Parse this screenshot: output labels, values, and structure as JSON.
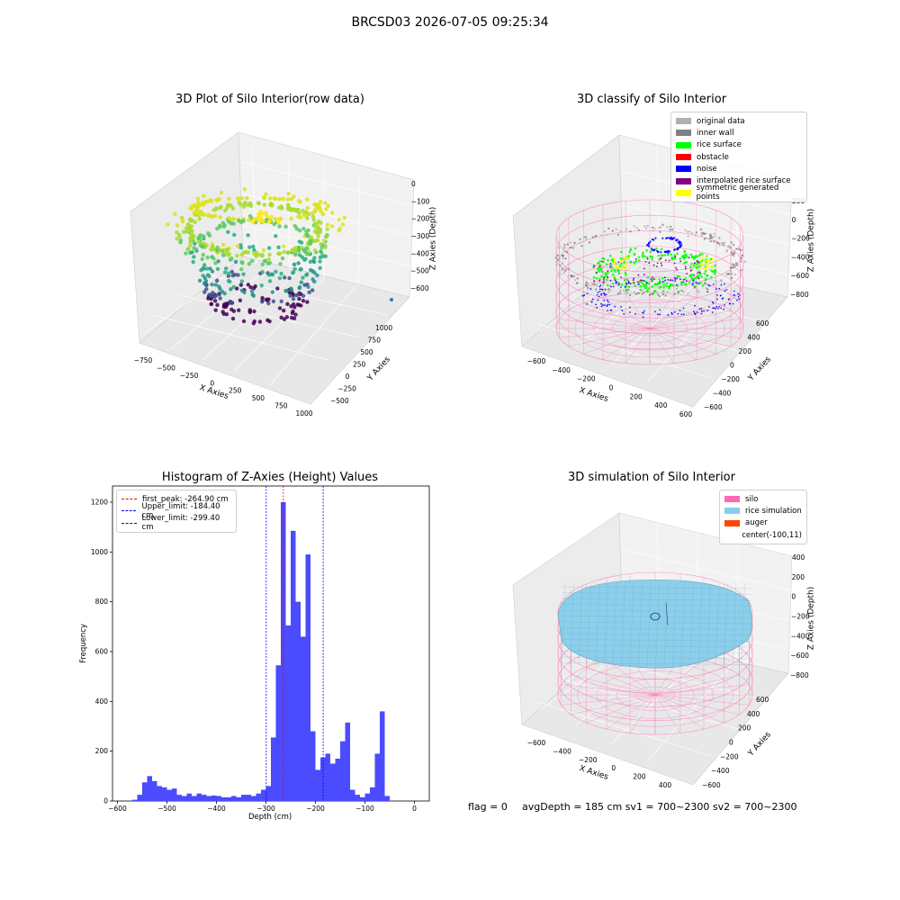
{
  "figure_title": "BRCSD03 2026-07-05 09:25:34",
  "panels": {
    "raw": {
      "title": "3D Plot of Silo Interior(row data)",
      "x_label": "X Axies",
      "y_label": "Y Axies",
      "z_label": "Z Axies (Depth)",
      "x_ticks": [
        "−750",
        "−500",
        "−250",
        "0",
        "250",
        "500",
        "750",
        "1000"
      ],
      "y_ticks": [
        "1000",
        "750",
        "500",
        "250",
        "0",
        "−250",
        "−500"
      ],
      "z_ticks": [
        "0",
        "−100",
        "−200",
        "−300",
        "−400",
        "−500",
        "−600"
      ]
    },
    "classify": {
      "title": "3D classify of Silo Interior",
      "x_label": "X Axies",
      "y_label": "Y Axies",
      "z_label": "Z Axies (Depth)",
      "x_ticks": [
        "−600",
        "−400",
        "−200",
        "0",
        "200",
        "400",
        "600"
      ],
      "y_ticks": [
        "600",
        "400",
        "200",
        "0",
        "−200",
        "−400",
        "−600"
      ],
      "z_ticks": [
        "200",
        "0",
        "−200",
        "−400",
        "−600",
        "−800"
      ],
      "legend": [
        {
          "label": "original data",
          "color": "#b0b0b0"
        },
        {
          "label": "inner wall",
          "color": "#808080"
        },
        {
          "label": "rice surface",
          "color": "#00ff00"
        },
        {
          "label": "obstacle",
          "color": "#ff0000"
        },
        {
          "label": "noise",
          "color": "#0000ff"
        },
        {
          "label": "interpolated rice surface",
          "color": "#800080"
        },
        {
          "label": "symmetric generated points",
          "color": "#ffff00"
        }
      ]
    },
    "histogram": {
      "title": "Histogram of Z-Axies (Height) Values",
      "x_label": "Depth (cm)",
      "y_label": "Frequency",
      "legend": [
        {
          "label": "first_peak: -264.90 cm",
          "color": "#ff0000"
        },
        {
          "label": "Upper_limit: -184.40 cm",
          "color": "#0000ff"
        },
        {
          "label": "Lower_limit: -299.40 cm",
          "color": "#0000ff"
        }
      ]
    },
    "simulation": {
      "title": "3D simulation of Silo Interior",
      "x_label": "X Axies",
      "y_label": "Y Axies",
      "z_label": "Z Axies (Depth)",
      "x_ticks": [
        "−600",
        "−400",
        "−200",
        "0",
        "200",
        "400"
      ],
      "y_ticks": [
        "600",
        "400",
        "200",
        "0",
        "−200",
        "−400",
        "−600"
      ],
      "z_ticks": [
        "400",
        "200",
        "0",
        "−200",
        "−400",
        "−600",
        "−800"
      ],
      "legend": [
        {
          "label": "silo",
          "color": "#ff69b4"
        },
        {
          "label": "rice simulation",
          "color": "#87ceeb"
        },
        {
          "label": "auger",
          "color": "#ff4500"
        },
        {
          "label": "center(-100,11)",
          "color": ""
        }
      ],
      "footer": {
        "flag": "flag = 0",
        "stats": "avgDepth = 185 cm  sv1 = 700~2300  sv2 = 700~2300"
      }
    }
  },
  "chart_data": [
    {
      "type": "scatter",
      "title": "3D Plot of Silo Interior(row data)",
      "dimensions": 3,
      "xlabel": "X Axies",
      "ylabel": "Y Axies",
      "zlabel": "Z Axies (Depth)",
      "xlim": [
        -850,
        1050
      ],
      "ylim": [
        -550,
        1100
      ],
      "zlim": [
        -700,
        30
      ],
      "colormap": "viridis"
    },
    {
      "type": "scatter",
      "title": "3D classify of Silo Interior",
      "dimensions": 3,
      "xlabel": "X Axies",
      "ylabel": "Y Axies",
      "zlabel": "Z Axies (Depth)",
      "xlim": [
        -700,
        650
      ],
      "ylim": [
        -650,
        650
      ],
      "zlim": [
        -900,
        250
      ],
      "series": [
        {
          "name": "original data",
          "color": "#b0b0b0"
        },
        {
          "name": "inner wall",
          "color": "#808080"
        },
        {
          "name": "rice surface",
          "color": "#00ff00"
        },
        {
          "name": "obstacle",
          "color": "#ff0000"
        },
        {
          "name": "noise",
          "color": "#0000ff"
        },
        {
          "name": "interpolated rice surface",
          "color": "#800080"
        },
        {
          "name": "symmetric generated points",
          "color": "#ffff00"
        }
      ]
    },
    {
      "type": "bar",
      "title": "Histogram of Z-Axies (Height) Values",
      "xlabel": "Depth (cm)",
      "ylabel": "Frequency",
      "xlim": [
        -610,
        30
      ],
      "ylim": [
        0,
        1265
      ],
      "x_ticks": [
        -600,
        -500,
        -400,
        -300,
        -200,
        -100,
        0
      ],
      "y_ticks": [
        0,
        200,
        400,
        600,
        800,
        1000,
        1200
      ],
      "bin_width": 10,
      "bar_color": "#4b4bff",
      "bins_left": [
        -570,
        -560,
        -550,
        -540,
        -530,
        -520,
        -510,
        -500,
        -490,
        -480,
        -470,
        -460,
        -450,
        -440,
        -430,
        -420,
        -410,
        -400,
        -390,
        -380,
        -370,
        -360,
        -350,
        -340,
        -330,
        -320,
        -310,
        -300,
        -290,
        -280,
        -270,
        -260,
        -250,
        -240,
        -230,
        -220,
        -210,
        -200,
        -190,
        -180,
        -170,
        -160,
        -150,
        -140,
        -130,
        -120,
        -110,
        -100,
        -90,
        -80,
        -70,
        -60,
        -50,
        -40,
        -30,
        -20
      ],
      "values": [
        5,
        25,
        75,
        100,
        80,
        60,
        55,
        45,
        50,
        25,
        20,
        30,
        20,
        30,
        25,
        20,
        22,
        20,
        15,
        15,
        20,
        15,
        25,
        25,
        20,
        30,
        45,
        60,
        255,
        545,
        1200,
        705,
        1085,
        800,
        660,
        990,
        280,
        125,
        175,
        190,
        150,
        170,
        240,
        315,
        45,
        25,
        15,
        30,
        55,
        190,
        360,
        20,
        0,
        0,
        0,
        0
      ],
      "reference_lines": [
        {
          "name": "first_peak: -264.90 cm",
          "x": -264.9,
          "color": "#ff0000"
        },
        {
          "name": "Upper_limit: -184.40 cm",
          "x": -184.4,
          "color": "#0000ff"
        },
        {
          "name": "Lower_limit: -299.40 cm",
          "x": -299.4,
          "color": "#0000ff"
        }
      ]
    },
    {
      "type": "scatter",
      "title": "3D simulation of Silo Interior",
      "dimensions": 3,
      "xlabel": "X Axies",
      "ylabel": "Y Axies",
      "zlabel": "Z Axies (Depth)",
      "xlim": [
        -700,
        500
      ],
      "ylim": [
        -650,
        650
      ],
      "zlim": [
        -900,
        450
      ],
      "series": [
        {
          "name": "silo",
          "color": "#ff69b4"
        },
        {
          "name": "rice simulation",
          "color": "#87ceeb"
        },
        {
          "name": "auger",
          "color": "#ff4500"
        },
        {
          "name": "center(-100,11)",
          "color": ""
        }
      ]
    }
  ]
}
